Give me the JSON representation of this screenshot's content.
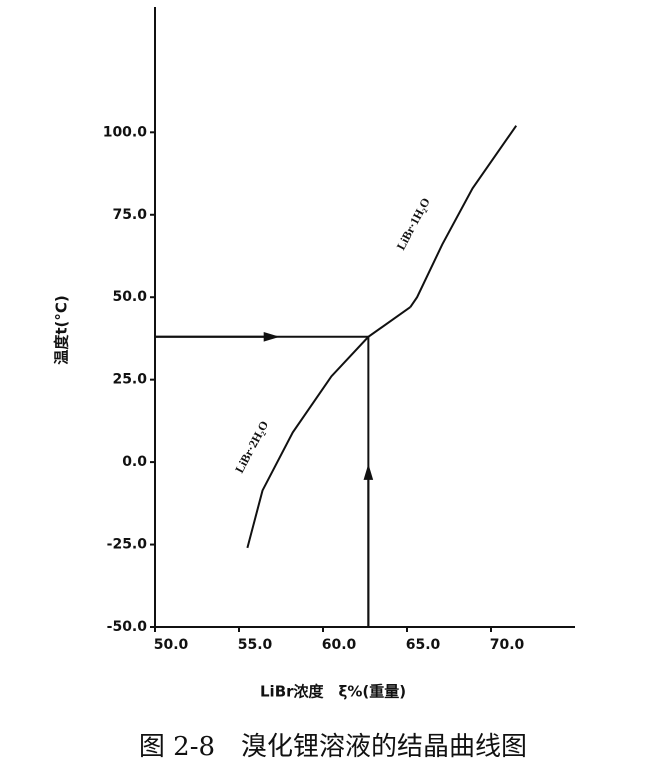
{
  "chart_data": {
    "type": "line",
    "caption": "图 2-8　溴化锂溶液的结晶曲线图",
    "x_label": "LiBr浓度　ξ%(重量)",
    "y_label": "温度t(°C)",
    "xlim": [
      50,
      75
    ],
    "ylim": [
      -50,
      138
    ],
    "xticks": [
      {
        "value": 50,
        "label": "50.0"
      },
      {
        "value": 55,
        "label": "55.0"
      },
      {
        "value": 60,
        "label": "60.0"
      },
      {
        "value": 65,
        "label": "65.0"
      },
      {
        "value": 70,
        "label": "70.0"
      }
    ],
    "yticks": [
      {
        "value": 100,
        "label": "100.0"
      },
      {
        "value": 75,
        "label": "75.0"
      },
      {
        "value": 50,
        "label": "50.0"
      },
      {
        "value": 25,
        "label": "25.0"
      },
      {
        "value": 0,
        "label": "0.0"
      },
      {
        "value": -25,
        "label": "-25.0"
      },
      {
        "value": -50,
        "label": "-50.0"
      }
    ],
    "series": [
      {
        "name": "LiBr·2H₂O",
        "color": "#111111",
        "x": [
          55.5,
          56.4,
          58.2,
          60.5,
          62.7,
          65.2
        ],
        "values": [
          -26,
          -8.6,
          9,
          26,
          38,
          47
        ]
      },
      {
        "name": "LiBr·1H₂O",
        "color": "#111111",
        "x": [
          65.2,
          65.6,
          67.1,
          68.9,
          71.5
        ],
        "values": [
          47,
          50,
          66,
          83,
          102
        ]
      }
    ],
    "construction": {
      "x": 62.7,
      "t": 38
    }
  }
}
